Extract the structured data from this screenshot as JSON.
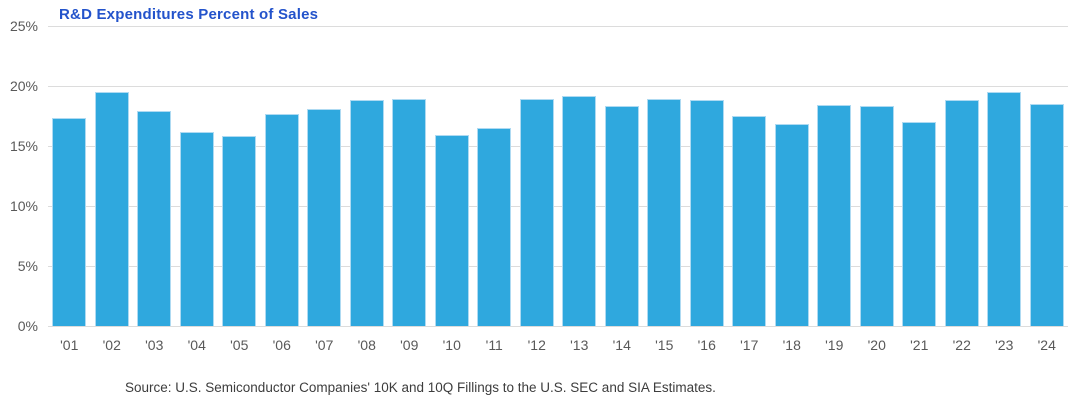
{
  "chart_data": {
    "type": "bar",
    "title": "R&D Expenditures Percent of Sales",
    "categories": [
      "'01",
      "'02",
      "'03",
      "'04",
      "'05",
      "'06",
      "'07",
      "'08",
      "'09",
      "'10",
      "'11",
      "'12",
      "'13",
      "'14",
      "'15",
      "'16",
      "'17",
      "'18",
      "'19",
      "'20",
      "'21",
      "'22",
      "'23",
      "'24"
    ],
    "values": [
      17.3,
      19.5,
      17.9,
      16.2,
      15.8,
      17.7,
      18.1,
      18.8,
      18.9,
      15.9,
      16.5,
      18.9,
      19.2,
      18.3,
      18.9,
      18.8,
      17.5,
      16.8,
      18.4,
      18.3,
      17.0,
      18.8,
      19.5,
      18.5
    ],
    "xlabel": "",
    "ylabel": "",
    "ylim": [
      0,
      25
    ],
    "y_ticks": [
      {
        "label": "25%",
        "value": 25
      },
      {
        "label": "20%",
        "value": 20
      },
      {
        "label": "15%",
        "value": 15
      },
      {
        "label": "10%",
        "value": 10
      },
      {
        "label": "5%",
        "value": 5
      },
      {
        "label": "0%",
        "value": 0
      }
    ],
    "grid": true,
    "legend": "none",
    "source": "Source: U.S. Semiconductor Companies' 10K and 10Q Fillings to the U.S. SEC and SIA Estimates.",
    "colors": {
      "bar_fill": "#2FA8DE",
      "bar_edge": "#AEDAF2",
      "gridline": "#DCDCDC",
      "axis_labels": "#595959",
      "title": "#2353CB"
    }
  }
}
